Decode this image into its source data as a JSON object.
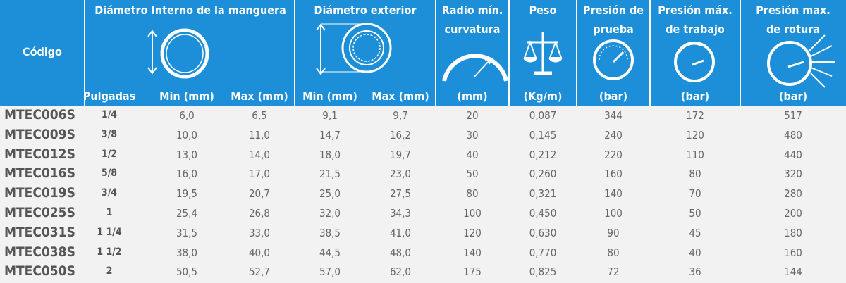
{
  "header": {
    "code": "Código",
    "columns": [
      {
        "title": [
          "Diámetro Interno de la manguera"
        ],
        "units": [
          "Pulgadas",
          "Min (mm)",
          "Max (mm)"
        ]
      },
      {
        "title": [
          "Diámetro exterior"
        ],
        "units": [
          "Min (mm)",
          "Max (mm)"
        ]
      },
      {
        "title": [
          "Radio mín.",
          "curvatura"
        ],
        "units": [
          "(mm)"
        ]
      },
      {
        "title": [
          "Peso"
        ],
        "units": [
          "(Kg/m)"
        ]
      },
      {
        "title": [
          "Presión de",
          "prueba"
        ],
        "units": [
          "(bar)"
        ]
      },
      {
        "title": [
          "Presión máx.",
          "de trabajo"
        ],
        "units": [
          "(bar)"
        ]
      },
      {
        "title": [
          "Presión max.",
          "de rotura"
        ],
        "units": [
          "(bar)"
        ]
      }
    ]
  },
  "table": {
    "rows": [
      [
        "MTEC006S",
        "1/4",
        "6,0",
        "6,5",
        "9,1",
        "9,7",
        "20",
        "0,087",
        "344",
        "172",
        "517"
      ],
      [
        "MTEC009S",
        "3/8",
        "10,0",
        "11,0",
        "14,7",
        "16,2",
        "30",
        "0,145",
        "240",
        "120",
        "480"
      ],
      [
        "MTEC012S",
        "1/2",
        "13,0",
        "14,0",
        "18,0",
        "19,7",
        "40",
        "0,212",
        "220",
        "110",
        "440"
      ],
      [
        "MTEC016S",
        "5/8",
        "16,0",
        "17,0",
        "21,5",
        "23,0",
        "50",
        "0,260",
        "160",
        "80",
        "320"
      ],
      [
        "MTEC019S",
        "3/4",
        "19,5",
        "20,7",
        "25,0",
        "27,5",
        "80",
        "0,321",
        "140",
        "70",
        "280"
      ],
      [
        "MTEC025S",
        "1",
        "25,4",
        "26,8",
        "32,0",
        "34,3",
        "100",
        "0,450",
        "100",
        "50",
        "200"
      ],
      [
        "MTEC031S",
        "1 1/4",
        "31,5",
        "33,0",
        "38,5",
        "41,0",
        "120",
        "0,630",
        "90",
        "45",
        "180"
      ],
      [
        "MTEC038S",
        "1 1/2",
        "38,0",
        "40,0",
        "44,5",
        "48,0",
        "140",
        "0,770",
        "80",
        "40",
        "160"
      ],
      [
        "MTEC050S",
        "2",
        "50,5",
        "52,7",
        "57,0",
        "62,0",
        "175",
        "0,825",
        "72",
        "36",
        "144"
      ]
    ]
  }
}
